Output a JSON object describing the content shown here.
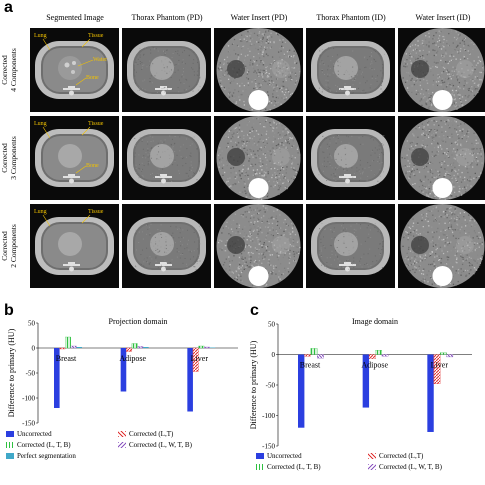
{
  "panel_a": {
    "letter": "a",
    "columns": [
      "Segmented Image",
      "Thorax Phantom (PD)",
      "Water Insert (PD)",
      "Thorax Phantom (ID)",
      "Water Insert (ID)"
    ],
    "rows": [
      {
        "label_line1": "Corrected",
        "label_line2": "4 Components",
        "annotations": [
          "Lung",
          "Tissue",
          "Water",
          "Bone"
        ]
      },
      {
        "label_line1": "Corrected",
        "label_line2": "3 Components",
        "annotations": [
          "Lung",
          "Tissue",
          "Bone"
        ]
      },
      {
        "label_line1": "Corrected",
        "label_line2": "2 Components",
        "annotations": [
          "Lung",
          "Tissue"
        ]
      }
    ]
  },
  "panel_b": {
    "letter": "b"
  },
  "panel_c": {
    "letter": "c"
  },
  "chart_data": [
    {
      "type": "bar",
      "title": "Projection domain",
      "ylabel": "Difference to primary (HU)",
      "ylim": [
        -150,
        50
      ],
      "yticks": [
        50,
        0,
        -50,
        -100,
        -150
      ],
      "categories": [
        "Breast",
        "Adipose",
        "Liver"
      ],
      "series": [
        {
          "name": "Uncorrected",
          "values": [
            -120,
            -87,
            -127
          ],
          "color": "#2b3fe0",
          "pattern": "solid"
        },
        {
          "name": "Corrected (L,T)",
          "values": [
            -2,
            -7,
            -47
          ],
          "color": "#e03030",
          "pattern": "diag"
        },
        {
          "name": "Corrected (L, T, B)",
          "values": [
            22,
            9,
            4
          ],
          "color": "#2ec040",
          "pattern": "vert"
        },
        {
          "name": "Corrected (L, W, T, B)",
          "values": [
            4,
            3,
            2
          ],
          "color": "#8a55c0",
          "pattern": "diag2"
        },
        {
          "name": "Perfect segmentation",
          "values": [
            2,
            2,
            1
          ],
          "color": "#40a8c8",
          "pattern": "solid"
        }
      ]
    },
    {
      "type": "bar",
      "title": "Image domain",
      "ylabel": "Difference to primary (HU)",
      "ylim": [
        -150,
        50
      ],
      "yticks": [
        50,
        0,
        -50,
        -100,
        -150
      ],
      "categories": [
        "Breast",
        "Adipose",
        "Liver"
      ],
      "series": [
        {
          "name": "Uncorrected",
          "values": [
            -120,
            -87,
            -127
          ],
          "color": "#2b3fe0",
          "pattern": "solid"
        },
        {
          "name": "Corrected (L,T)",
          "values": [
            -3,
            -7,
            -48
          ],
          "color": "#e03030",
          "pattern": "diag"
        },
        {
          "name": "Corrected (L, T, B)",
          "values": [
            10,
            7,
            3
          ],
          "color": "#2ec040",
          "pattern": "vert"
        },
        {
          "name": "Corrected (L, W, T, B)",
          "values": [
            -6,
            -3,
            -4
          ],
          "color": "#8a55c0",
          "pattern": "diag2"
        }
      ]
    }
  ]
}
